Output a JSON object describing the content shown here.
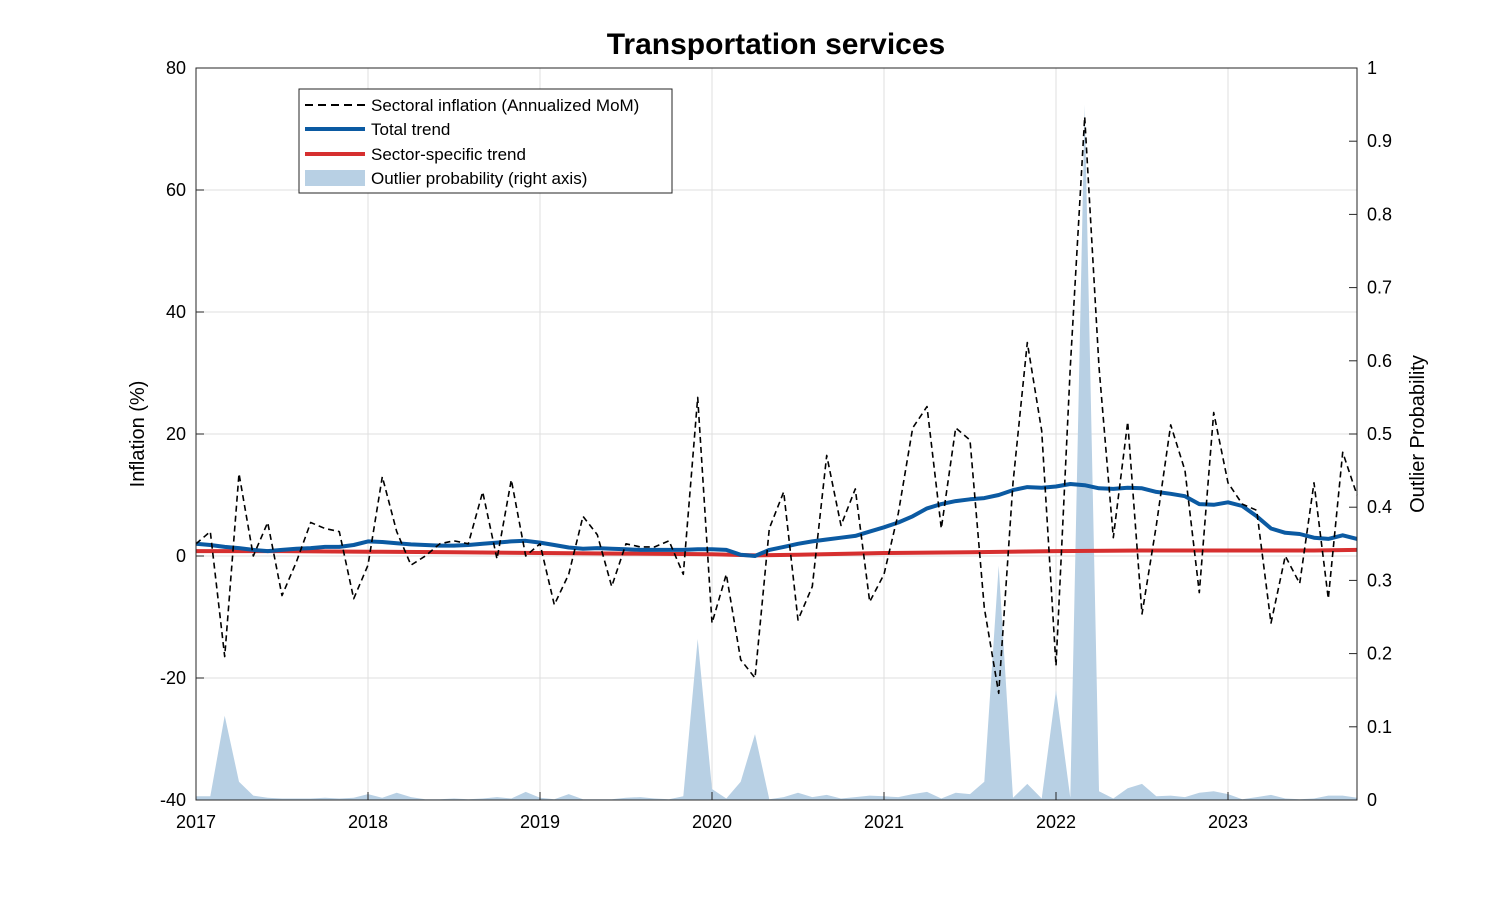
{
  "chart_data": {
    "type": "line",
    "title": "Transportation services",
    "ylabel": "Inflation (%)",
    "y2label": "Outlier Probability",
    "xlim": [
      2017.0,
      2023.75
    ],
    "ylim": [
      -40,
      80
    ],
    "y2lim": [
      0,
      1
    ],
    "x_ticks": [
      "2017",
      "2018",
      "2019",
      "2020",
      "2021",
      "2022",
      "2023"
    ],
    "y_ticks": [
      "-40",
      "-20",
      "0",
      "20",
      "40",
      "60",
      "80"
    ],
    "y2_ticks": [
      "0",
      "0.1",
      "0.2",
      "0.3",
      "0.4",
      "0.5",
      "0.6",
      "0.7",
      "0.8",
      "0.9",
      "1"
    ],
    "grid": true,
    "legend_position": "top-left",
    "colors": {
      "sectoral": "#000000",
      "total_trend": "#0b5aa2",
      "sector_trend": "#d62f2f",
      "outlier": "#b8d0e4"
    },
    "series": [
      {
        "name": "Sectoral inflation (Annualized MoM)",
        "style": "dashed",
        "x": [
          2017.0,
          2017.083,
          2017.167,
          2017.25,
          2017.333,
          2017.417,
          2017.5,
          2017.583,
          2017.667,
          2017.75,
          2017.833,
          2017.917,
          2018.0,
          2018.083,
          2018.167,
          2018.25,
          2018.333,
          2018.417,
          2018.5,
          2018.583,
          2018.667,
          2018.75,
          2018.833,
          2018.917,
          2019.0,
          2019.083,
          2019.167,
          2019.25,
          2019.333,
          2019.417,
          2019.5,
          2019.583,
          2019.667,
          2019.75,
          2019.833,
          2019.917,
          2020.0,
          2020.083,
          2020.167,
          2020.25,
          2020.333,
          2020.417,
          2020.5,
          2020.583,
          2020.667,
          2020.75,
          2020.833,
          2020.917,
          2021.0,
          2021.083,
          2021.167,
          2021.25,
          2021.333,
          2021.417,
          2021.5,
          2021.583,
          2021.667,
          2021.75,
          2021.833,
          2021.917,
          2022.0,
          2022.083,
          2022.167,
          2022.25,
          2022.333,
          2022.417,
          2022.5,
          2022.583,
          2022.667,
          2022.75,
          2022.833,
          2022.917,
          2023.0,
          2023.083,
          2023.167,
          2023.25,
          2023.333,
          2023.417,
          2023.5,
          2023.583,
          2023.667,
          2023.75
        ],
        "values": [
          2,
          4,
          -16.5,
          13.5,
          0,
          5.5,
          -6.5,
          -1,
          5.5,
          4.5,
          4,
          -7,
          -1.5,
          13,
          4,
          -1.5,
          0,
          2,
          2.5,
          2,
          10.5,
          -0.5,
          12.5,
          0,
          2,
          -8,
          -3,
          6.5,
          3.5,
          -5,
          2,
          1.5,
          1.5,
          2.5,
          -3,
          26,
          -11,
          -3,
          -17,
          -20,
          4.5,
          10.5,
          -10.5,
          -5,
          16.5,
          5,
          11,
          -7.5,
          -3,
          7,
          21,
          24.5,
          4.5,
          21,
          19,
          -8.5,
          -22.5,
          12,
          35,
          20.5,
          -18,
          31,
          72,
          31,
          3,
          22,
          -9.5,
          5,
          21.5,
          14,
          -6,
          23.5,
          12,
          8.5,
          7.5,
          -11,
          0,
          -4.5,
          12,
          -7,
          17,
          10
        ]
      },
      {
        "name": "Total trend",
        "style": "solid",
        "x": [
          2017.0,
          2017.083,
          2017.167,
          2017.25,
          2017.333,
          2017.417,
          2017.5,
          2017.583,
          2017.667,
          2017.75,
          2017.833,
          2017.917,
          2018.0,
          2018.083,
          2018.167,
          2018.25,
          2018.333,
          2018.417,
          2018.5,
          2018.583,
          2018.667,
          2018.75,
          2018.833,
          2018.917,
          2019.0,
          2019.083,
          2019.167,
          2019.25,
          2019.333,
          2019.417,
          2019.5,
          2019.583,
          2019.667,
          2019.75,
          2019.833,
          2019.917,
          2020.0,
          2020.083,
          2020.167,
          2020.25,
          2020.333,
          2020.417,
          2020.5,
          2020.583,
          2020.667,
          2020.75,
          2020.833,
          2020.917,
          2021.0,
          2021.083,
          2021.167,
          2021.25,
          2021.333,
          2021.417,
          2021.5,
          2021.583,
          2021.667,
          2021.75,
          2021.833,
          2021.917,
          2022.0,
          2022.083,
          2022.167,
          2022.25,
          2022.333,
          2022.417,
          2022.5,
          2022.583,
          2022.667,
          2022.75,
          2022.833,
          2022.917,
          2023.0,
          2023.083,
          2023.167,
          2023.25,
          2023.333,
          2023.417,
          2023.5,
          2023.583,
          2023.667,
          2023.75
        ],
        "values": [
          2,
          1.8,
          1.5,
          1.3,
          1,
          0.8,
          1,
          1.2,
          1.3,
          1.5,
          1.5,
          1.8,
          2.4,
          2.3,
          2.1,
          1.9,
          1.8,
          1.7,
          1.7,
          1.8,
          2,
          2.2,
          2.4,
          2.5,
          2.2,
          1.8,
          1.4,
          1.2,
          1.3,
          1.2,
          1.1,
          1,
          1,
          1,
          1,
          1.1,
          1.1,
          1,
          0.2,
          0,
          1,
          1.5,
          2,
          2.4,
          2.7,
          3,
          3.3,
          4,
          4.7,
          5.5,
          6.5,
          7.8,
          8.5,
          9,
          9.3,
          9.5,
          10,
          10.8,
          11.3,
          11.2,
          11.4,
          11.8,
          11.6,
          11.1,
          11,
          11.2,
          11.1,
          10.5,
          10.2,
          9.8,
          8.5,
          8.4,
          8.8,
          8.2,
          6.5,
          4.5,
          3.8,
          3.6,
          3,
          2.8,
          3.4,
          2.8
        ]
      },
      {
        "name": "Sector-specific trend",
        "style": "solid",
        "x": [
          2017.0,
          2017.5,
          2018.0,
          2018.5,
          2019.0,
          2019.5,
          2020.0,
          2020.25,
          2020.5,
          2021.0,
          2021.5,
          2022.0,
          2022.5,
          2023.0,
          2023.5,
          2023.75
        ],
        "values": [
          0.8,
          0.8,
          0.7,
          0.6,
          0.5,
          0.4,
          0.3,
          0.1,
          0.2,
          0.5,
          0.6,
          0.8,
          0.9,
          0.9,
          0.9,
          1
        ]
      },
      {
        "name": "Outlier probability (right axis)",
        "style": "area",
        "axis": "right",
        "x": [
          2017.0,
          2017.083,
          2017.167,
          2017.25,
          2017.333,
          2017.417,
          2017.5,
          2017.583,
          2017.667,
          2017.75,
          2017.833,
          2017.917,
          2018.0,
          2018.083,
          2018.167,
          2018.25,
          2018.333,
          2018.417,
          2018.5,
          2018.583,
          2018.667,
          2018.75,
          2018.833,
          2018.917,
          2019.0,
          2019.083,
          2019.167,
          2019.25,
          2019.333,
          2019.417,
          2019.5,
          2019.583,
          2019.667,
          2019.75,
          2019.833,
          2019.917,
          2020.0,
          2020.083,
          2020.167,
          2020.25,
          2020.333,
          2020.417,
          2020.5,
          2020.583,
          2020.667,
          2020.75,
          2020.833,
          2020.917,
          2021.0,
          2021.083,
          2021.167,
          2021.25,
          2021.333,
          2021.417,
          2021.5,
          2021.583,
          2021.667,
          2021.75,
          2021.833,
          2021.917,
          2022.0,
          2022.083,
          2022.167,
          2022.25,
          2022.333,
          2022.417,
          2022.5,
          2022.583,
          2022.667,
          2022.75,
          2022.833,
          2022.917,
          2023.0,
          2023.083,
          2023.167,
          2023.25,
          2023.333,
          2023.417,
          2023.5,
          2023.583,
          2023.667,
          2023.75
        ],
        "values": [
          0.005,
          0.005,
          0.115,
          0.025,
          0.006,
          0.003,
          0.002,
          0.002,
          0.002,
          0.003,
          0.002,
          0.003,
          0.008,
          0.003,
          0.01,
          0.004,
          0.001,
          0.001,
          0.002,
          0.001,
          0.002,
          0.004,
          0.002,
          0.011,
          0.003,
          0.001,
          0.008,
          0.001,
          0.001,
          0.001,
          0.003,
          0.004,
          0.002,
          0.001,
          0.005,
          0.22,
          0.015,
          0.002,
          0.025,
          0.09,
          0.001,
          0.004,
          0.01,
          0.004,
          0.007,
          0.002,
          0.004,
          0.006,
          0.005,
          0.004,
          0.008,
          0.011,
          0.002,
          0.01,
          0.008,
          0.025,
          0.32,
          0.003,
          0.022,
          0.002,
          0.15,
          0.003,
          0.95,
          0.012,
          0.002,
          0.016,
          0.022,
          0.005,
          0.006,
          0.004,
          0.01,
          0.012,
          0.008,
          0.001,
          0.004,
          0.007,
          0.002,
          0.001,
          0.002,
          0.006,
          0.006,
          0.003
        ]
      }
    ]
  }
}
